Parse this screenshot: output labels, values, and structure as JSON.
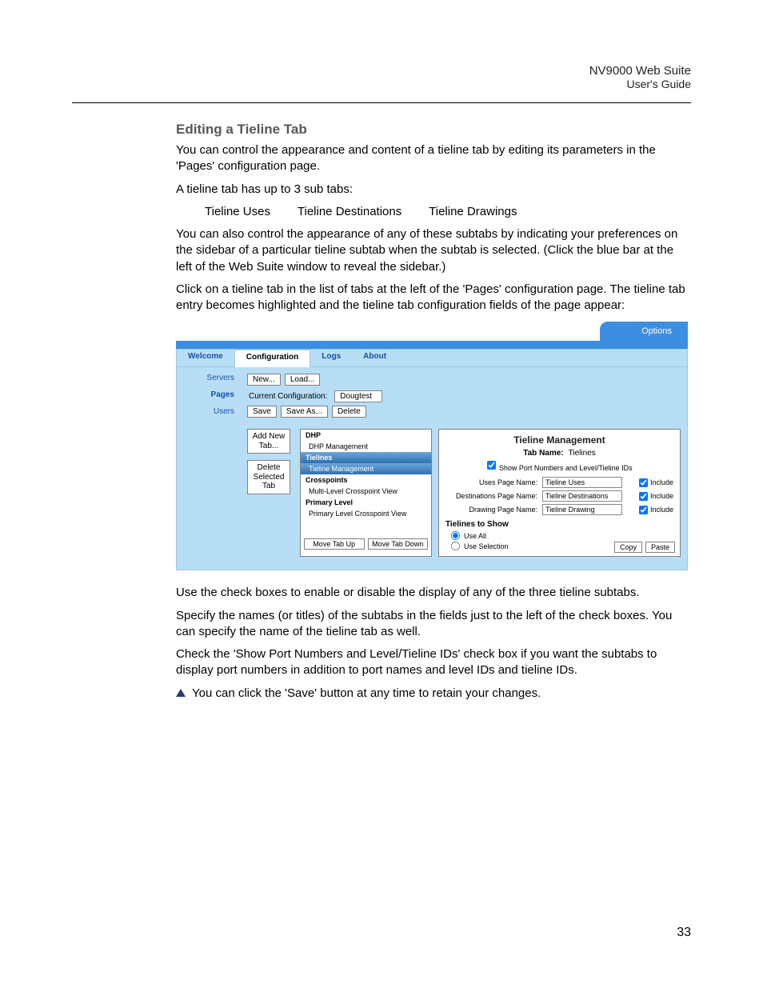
{
  "header": {
    "line1": "NV9000 Web Suite",
    "line2": "User's Guide"
  },
  "section_heading": "Editing a Tieline Tab",
  "paragraphs": {
    "p1": "You can control the appearance and content of a tieline tab by editing its parameters in the 'Pages' configuration page.",
    "p2": "A tieline tab has up to 3 sub tabs:",
    "subtabs": {
      "s1": "Tieline Uses",
      "s2": "Tieline Destinations",
      "s3": "Tieline Drawings"
    },
    "p3": "You can also control the appearance of any of these subtabs by indicating your preferences on the sidebar of a particular tieline subtab when the subtab is selected. (Click the blue bar at the left of the Web Suite window to reveal the sidebar.)",
    "p4": "Click on a tieline tab in the list of tabs at the left of the 'Pages' configuration page. The tieline tab entry becomes highlighted and the tieline tab configuration fields of the page appear:",
    "p5": "Use the check boxes to enable or disable the display of any of the three tieline subtabs.",
    "p6": "Specify the names (or titles) of the subtabs in the fields just to the left of the check boxes. You can specify the name of the tieline tab as well.",
    "p7": "Check the 'Show Port Numbers and Level/Tieline IDs' check box if you want the subtabs to display port numbers in addition to port names and level IDs and tieline IDs.",
    "note": "You can click the 'Save' button at any time to retain your changes."
  },
  "page_number": "33",
  "app": {
    "options_label": "Options",
    "tabs": {
      "welcome": "Welcome",
      "configuration": "Configuration",
      "logs": "Logs",
      "about": "About"
    },
    "left_nav": {
      "servers": "Servers",
      "pages": "Pages",
      "users": "Users"
    },
    "toolbar": {
      "new": "New...",
      "load": "Load...",
      "current_cfg_label": "Current Configuration:",
      "current_cfg_value": "Dougtest",
      "save": "Save",
      "save_as": "Save As...",
      "delete": "Delete"
    },
    "tab_buttons": {
      "add_new": "Add New Tab...",
      "delete_sel": "Delete Selected Tab"
    },
    "tree": {
      "dhp": "DHP",
      "dhp_mgmt": "DHP Management",
      "tielines": "Tielines",
      "tieline_mgmt": "Tieline Management",
      "crosspoints": "Crosspoints",
      "ml_cpv": "Multi-Level Crosspoint View",
      "primary_level": "Primary Level",
      "pl_cpv": "Primary Level Crosspoint View",
      "move_up": "Move Tab Up",
      "move_down": "Move Tab Down"
    },
    "right_panel": {
      "title": "Tieline Management",
      "tab_name_label": "Tab Name:",
      "tab_name_value": "Tielines",
      "show_ports_label": "Show Port Numbers and Level/Tieline IDs",
      "uses_label": "Uses Page Name:",
      "uses_value": "Tieline Uses",
      "dest_label": "Destinations Page Name:",
      "dest_value": "Tieline Destinations",
      "draw_label": "Drawing Page Name:",
      "draw_value": "Tieline Drawing",
      "include": "Include",
      "tielines_to_show": "Tielines to Show",
      "use_all": "Use All",
      "use_selection": "Use Selection",
      "copy": "Copy",
      "paste": "Paste"
    }
  },
  "colors": {
    "app_bg": "#b8def6",
    "options_bar": "#3b8ee0",
    "link": "#1a4fa0",
    "selected_grad_top": "#6ea7d8",
    "selected_grad_bottom": "#2f6fb0",
    "heading_gray": "#575757"
  }
}
